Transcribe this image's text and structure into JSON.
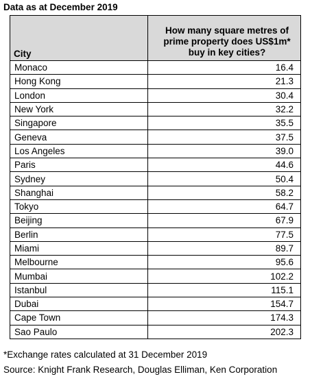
{
  "title": "Data as at December 2019",
  "table": {
    "header": [
      "City",
      "How many square metres of prime property does US$1m* buy in key cities?"
    ],
    "rows": [
      [
        "Monaco",
        "16.4"
      ],
      [
        "Hong Kong",
        "21.3"
      ],
      [
        "London",
        "30.4"
      ],
      [
        "New York",
        "32.2"
      ],
      [
        "Singapore",
        "35.5"
      ],
      [
        "Geneva",
        "37.5"
      ],
      [
        "Los Angeles",
        "39.0"
      ],
      [
        "Paris",
        "44.6"
      ],
      [
        "Sydney",
        "50.4"
      ],
      [
        "Shanghai",
        "58.2"
      ],
      [
        "Tokyo",
        "64.7"
      ],
      [
        "Beijing",
        "67.9"
      ],
      [
        "Berlin",
        "77.5"
      ],
      [
        "Miami",
        "89.7"
      ],
      [
        "Melbourne",
        "95.6"
      ],
      [
        "Mumbai",
        "102.2"
      ],
      [
        "Istanbul",
        "115.1"
      ],
      [
        "Dubai",
        "154.7"
      ],
      [
        "Cape Town",
        "174.3"
      ],
      [
        "Sao Paulo",
        "202.3"
      ]
    ]
  },
  "footnotes": [
    "*Exchange rates calculated at 31 December 2019",
    "Source: Knight Frank Research, Douglas Elliman, Ken Corporation"
  ]
}
